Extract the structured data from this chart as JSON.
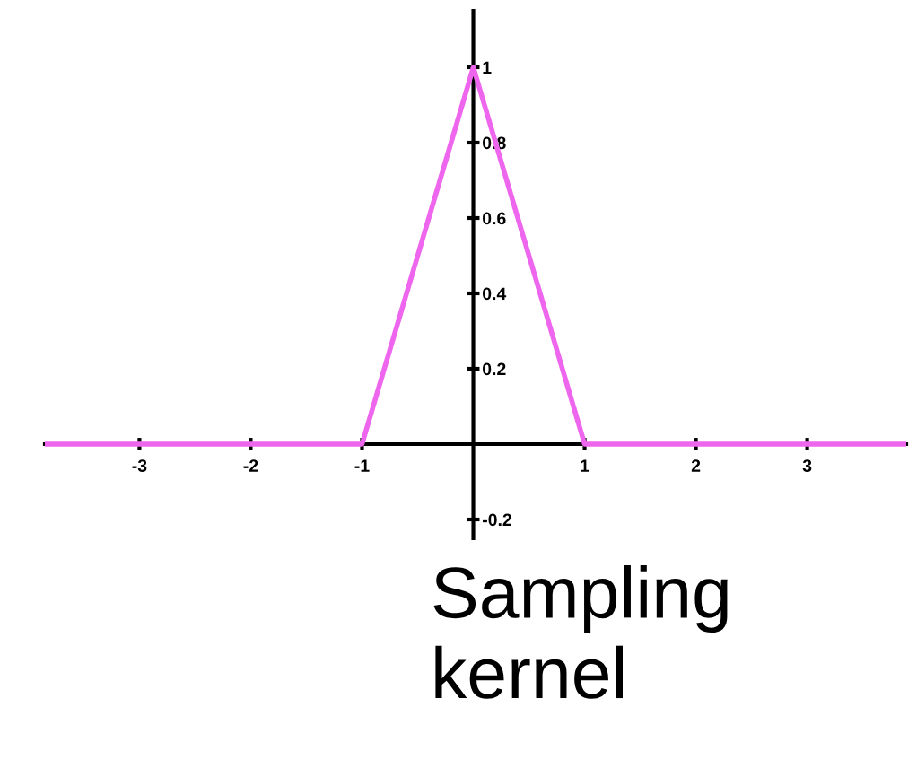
{
  "chart_data": {
    "type": "line",
    "x": [
      -3.85,
      -1,
      0,
      1,
      3.89
    ],
    "series": [
      {
        "color": "#ee66ee",
        "values": [
          0,
          0,
          1,
          0,
          0
        ]
      }
    ],
    "xlim": [
      -3.85,
      3.89
    ],
    "ylim": [
      -0.25,
      1.15
    ],
    "xticks": [
      -3,
      -2,
      -1,
      1,
      2,
      3
    ],
    "yticks": [
      -0.2,
      0.2,
      0.4,
      0.6,
      0.8,
      1
    ],
    "grid": false,
    "marker": "none",
    "line_style": "solid",
    "annotations": [
      "Sampling kernel"
    ]
  }
}
